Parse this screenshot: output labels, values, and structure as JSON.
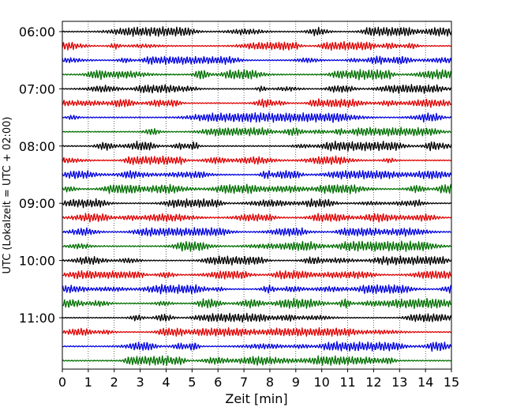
{
  "chart_data": {
    "type": "line",
    "title": "",
    "xlabel": "Zeit  [min]",
    "ylabel": "UTC (Lokalzeit = UTC + 02:00)",
    "xlim": [
      0,
      15
    ],
    "x_ticks": [
      0,
      1,
      2,
      3,
      4,
      5,
      6,
      7,
      8,
      9,
      10,
      11,
      12,
      13,
      14,
      15
    ],
    "x_tick_labels": [
      "0",
      "1",
      "2",
      "3",
      "4",
      "5",
      "6",
      "7",
      "8",
      "9",
      "10",
      "11",
      "12",
      "13",
      "14",
      "15"
    ],
    "grid": "vertical dotted lines at each minute",
    "trace_interval_minutes": 15,
    "trace_colors": [
      "#000000",
      "#e00000",
      "#0000e0",
      "#007000"
    ],
    "y_tick_labels": [
      {
        "label": "06:00",
        "trace_index": 0
      },
      {
        "label": "07:00",
        "trace_index": 4
      },
      {
        "label": "08:00",
        "trace_index": 8
      },
      {
        "label": "09:00",
        "trace_index": 12
      },
      {
        "label": "10:00",
        "trace_index": 16
      },
      {
        "label": "11:00",
        "trace_index": 20
      }
    ],
    "series": [
      {
        "start": "06:00",
        "color": "#000000",
        "amplitude": 0.55
      },
      {
        "start": "06:15",
        "color": "#e00000",
        "amplitude": 0.5
      },
      {
        "start": "06:30",
        "color": "#0000e0",
        "amplitude": 0.5
      },
      {
        "start": "06:45",
        "color": "#007000",
        "amplitude": 0.6
      },
      {
        "start": "07:00",
        "color": "#000000",
        "amplitude": 0.5
      },
      {
        "start": "07:15",
        "color": "#e00000",
        "amplitude": 0.5
      },
      {
        "start": "07:30",
        "color": "#0000e0",
        "amplitude": 0.55
      },
      {
        "start": "07:45",
        "color": "#007000",
        "amplitude": 0.5
      },
      {
        "start": "08:00",
        "color": "#000000",
        "amplitude": 0.55
      },
      {
        "start": "08:15",
        "color": "#e00000",
        "amplitude": 0.5
      },
      {
        "start": "08:30",
        "color": "#0000e0",
        "amplitude": 0.5
      },
      {
        "start": "08:45",
        "color": "#007000",
        "amplitude": 0.55
      },
      {
        "start": "09:00",
        "color": "#000000",
        "amplitude": 0.5
      },
      {
        "start": "09:15",
        "color": "#e00000",
        "amplitude": 0.5
      },
      {
        "start": "09:30",
        "color": "#0000e0",
        "amplitude": 0.5
      },
      {
        "start": "09:45",
        "color": "#007000",
        "amplitude": 0.6
      },
      {
        "start": "10:00",
        "color": "#000000",
        "amplitude": 0.5
      },
      {
        "start": "10:15",
        "color": "#e00000",
        "amplitude": 0.5
      },
      {
        "start": "10:30",
        "color": "#0000e0",
        "amplitude": 0.55
      },
      {
        "start": "10:45",
        "color": "#007000",
        "amplitude": 0.6
      },
      {
        "start": "11:00",
        "color": "#000000",
        "amplitude": 0.5
      },
      {
        "start": "11:15",
        "color": "#e00000",
        "amplitude": 0.5
      },
      {
        "start": "11:30",
        "color": "#0000e0",
        "amplitude": 0.55
      },
      {
        "start": "11:45",
        "color": "#007000",
        "amplitude": 0.55
      }
    ]
  }
}
